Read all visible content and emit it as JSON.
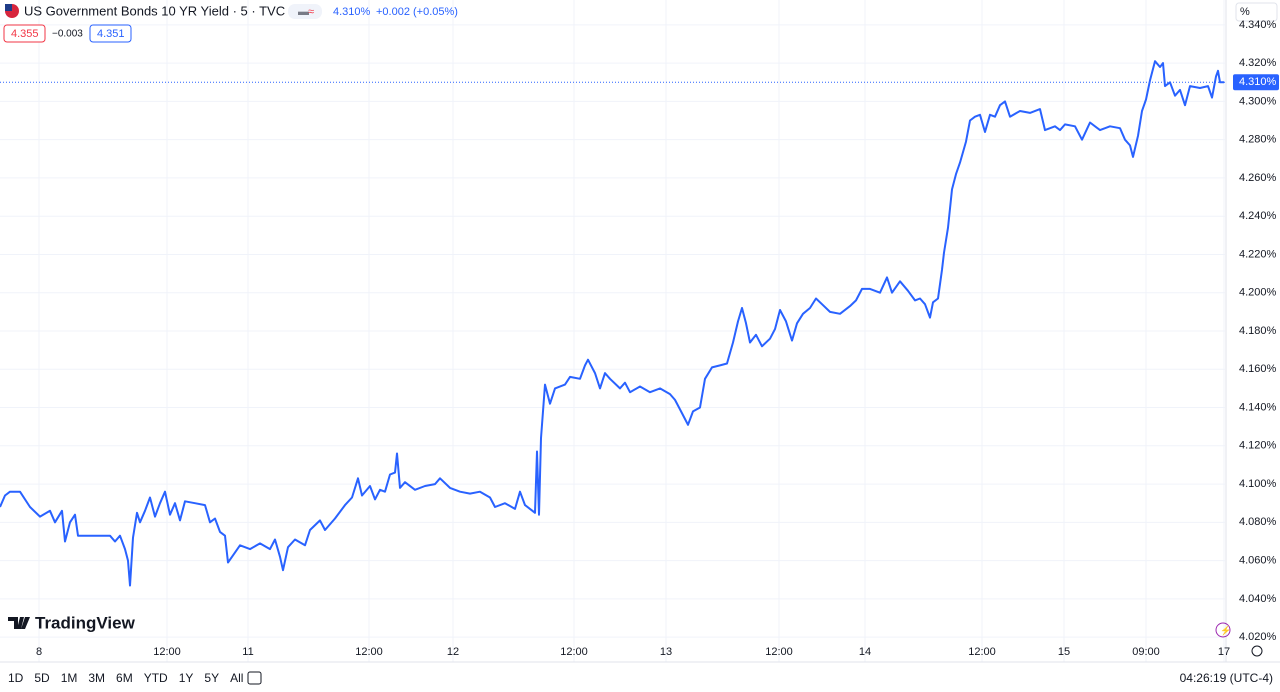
{
  "chart_data": {
    "type": "line",
    "title": "US Government Bonds 10 YR Yield · 5 · TVC",
    "change": "+0.002 (+0.05%)",
    "bid": "4.355",
    "spread": "−0.003",
    "ask": "4.351",
    "last_price": {
      "value": 4.31,
      "label": "4.310%"
    },
    "scale_mode": "%",
    "brand": "TradingView",
    "ranges": [
      "1D",
      "5D",
      "1M",
      "3M",
      "6M",
      "YTD",
      "1Y",
      "5Y",
      "All"
    ],
    "clock": "04:26:19 (UTC-4)",
    "grid": true,
    "xlim": [
      0,
      1225
    ],
    "xticks": [
      {
        "value": 39,
        "label": "8"
      },
      {
        "value": 167,
        "label": "12:00"
      },
      {
        "value": 248,
        "label": "11"
      },
      {
        "value": 369,
        "label": "12:00"
      },
      {
        "value": 453,
        "label": "12"
      },
      {
        "value": 574,
        "label": "12:00"
      },
      {
        "value": 666,
        "label": "13"
      },
      {
        "value": 779,
        "label": "12:00"
      },
      {
        "value": 865,
        "label": "14"
      },
      {
        "value": 982,
        "label": "12:00"
      },
      {
        "value": 1064,
        "label": "15"
      },
      {
        "value": 1146,
        "label": "09:00"
      },
      {
        "value": 1224,
        "label": "17"
      }
    ],
    "ylim": [
      4.007,
      4.353
    ],
    "yticks": [
      {
        "value": 4.02,
        "label": "4.020%"
      },
      {
        "value": 4.04,
        "label": "4.040%"
      },
      {
        "value": 4.06,
        "label": "4.060%"
      },
      {
        "value": 4.08,
        "label": "4.080%"
      },
      {
        "value": 4.1,
        "label": "4.100%"
      },
      {
        "value": 4.12,
        "label": "4.120%"
      },
      {
        "value": 4.14,
        "label": "4.140%"
      },
      {
        "value": 4.16,
        "label": "4.160%"
      },
      {
        "value": 4.18,
        "label": "4.180%"
      },
      {
        "value": 4.2,
        "label": "4.200%"
      },
      {
        "value": 4.22,
        "label": "4.220%"
      },
      {
        "value": 4.24,
        "label": "4.240%"
      },
      {
        "value": 4.26,
        "label": "4.260%"
      },
      {
        "value": 4.28,
        "label": "4.280%"
      },
      {
        "value": 4.3,
        "label": "4.300%"
      },
      {
        "value": 4.32,
        "label": "4.320%"
      },
      {
        "value": 4.34,
        "label": "4.340%"
      }
    ],
    "x": [
      0,
      5,
      10,
      20,
      30,
      40,
      50,
      55,
      62,
      65,
      70,
      75,
      78,
      85,
      100,
      110,
      115,
      120,
      125,
      128,
      130,
      133,
      137,
      140,
      145,
      150,
      155,
      160,
      165,
      170,
      175,
      180,
      185,
      195,
      205,
      210,
      215,
      220,
      225,
      228,
      232,
      240,
      250,
      260,
      270,
      275,
      280,
      283,
      288,
      295,
      305,
      310,
      320,
      325,
      335,
      345,
      352,
      358,
      362,
      370,
      375,
      380,
      385,
      390,
      395,
      397,
      400,
      405,
      415,
      425,
      435,
      440,
      450,
      460,
      470,
      480,
      490,
      495,
      505,
      515,
      520,
      525,
      530,
      535,
      537,
      539,
      541,
      545,
      550,
      555,
      565,
      570,
      580,
      585,
      588,
      595,
      600,
      605,
      610,
      620,
      625,
      630,
      640,
      650,
      660,
      670,
      675,
      680,
      685,
      688,
      693,
      700,
      705,
      712,
      720,
      727,
      733,
      738,
      742,
      746,
      750,
      756,
      762,
      770,
      775,
      780,
      786,
      792,
      797,
      803,
      810,
      816,
      822,
      830,
      840,
      850,
      856,
      862,
      870,
      880,
      887,
      892,
      900,
      908,
      915,
      920,
      925,
      930,
      933,
      938,
      942,
      944,
      948,
      952,
      956,
      960,
      966,
      970,
      975,
      980,
      985,
      990,
      995,
      1000,
      1005,
      1010,
      1020,
      1030,
      1040,
      1045,
      1055,
      1060,
      1065,
      1075,
      1082,
      1090,
      1100,
      1110,
      1120,
      1125,
      1130,
      1133,
      1138,
      1142,
      1146,
      1150,
      1155,
      1160,
      1163,
      1165,
      1170,
      1175,
      1180,
      1185,
      1190,
      1200,
      1208,
      1212,
      1216,
      1218,
      1220,
      1224
    ],
    "series": [
      {
        "color": "#2962ff",
        "values": [
          4.088,
          4.094,
          4.096,
          4.096,
          4.088,
          4.083,
          4.086,
          4.08,
          4.086,
          4.07,
          4.08,
          4.084,
          4.073,
          4.073,
          4.073,
          4.073,
          4.07,
          4.073,
          4.066,
          4.06,
          4.047,
          4.072,
          4.085,
          4.08,
          4.086,
          4.093,
          4.083,
          4.09,
          4.096,
          4.084,
          4.09,
          4.081,
          4.091,
          4.09,
          4.089,
          4.08,
          4.082,
          4.075,
          4.073,
          4.059,
          4.062,
          4.068,
          4.066,
          4.069,
          4.066,
          4.071,
          4.062,
          4.055,
          4.067,
          4.071,
          4.068,
          4.076,
          4.081,
          4.076,
          4.082,
          4.089,
          4.093,
          4.103,
          4.094,
          4.099,
          4.092,
          4.097,
          4.096,
          4.105,
          4.106,
          4.116,
          4.098,
          4.101,
          4.097,
          4.099,
          4.1,
          4.103,
          4.098,
          4.096,
          4.095,
          4.096,
          4.093,
          4.088,
          4.09,
          4.087,
          4.096,
          4.089,
          4.087,
          4.085,
          4.117,
          4.084,
          4.124,
          4.152,
          4.142,
          4.15,
          4.152,
          4.156,
          4.155,
          4.162,
          4.165,
          4.158,
          4.15,
          4.158,
          4.155,
          4.15,
          4.153,
          4.148,
          4.151,
          4.148,
          4.15,
          4.147,
          4.144,
          4.139,
          4.134,
          4.131,
          4.138,
          4.14,
          4.155,
          4.161,
          4.162,
          4.163,
          4.174,
          4.185,
          4.192,
          4.184,
          4.174,
          4.178,
          4.172,
          4.176,
          4.181,
          4.191,
          4.185,
          4.175,
          4.184,
          4.189,
          4.192,
          4.197,
          4.194,
          4.19,
          4.189,
          4.193,
          4.196,
          4.202,
          4.202,
          4.2,
          4.208,
          4.2,
          4.206,
          4.201,
          4.196,
          4.197,
          4.194,
          4.187,
          4.195,
          4.197,
          4.212,
          4.221,
          4.234,
          4.254,
          4.262,
          4.268,
          4.279,
          4.29,
          4.292,
          4.293,
          4.284,
          4.293,
          4.292,
          4.298,
          4.3,
          4.292,
          4.295,
          4.294,
          4.296,
          4.285,
          4.287,
          4.285,
          4.288,
          4.287,
          4.28,
          4.289,
          4.285,
          4.287,
          4.286,
          4.28,
          4.277,
          4.271,
          4.282,
          4.295,
          4.301,
          4.311,
          4.321,
          4.318,
          4.32,
          4.308,
          4.31,
          4.303,
          4.306,
          4.298,
          4.308,
          4.307,
          4.308,
          4.302,
          4.313,
          4.316,
          4.31,
          4.31
        ]
      }
    ]
  }
}
